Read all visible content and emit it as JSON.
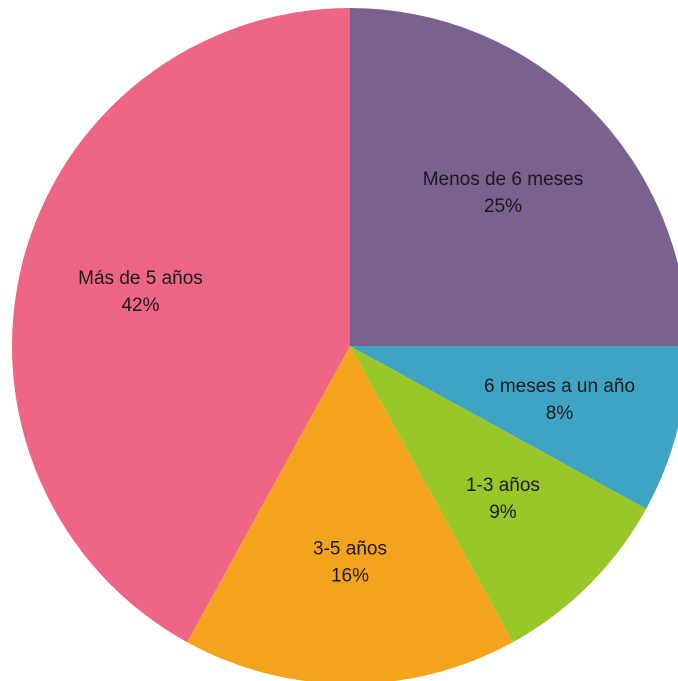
{
  "chart_data": {
    "type": "pie",
    "categories": [
      "Menos de 6 meses",
      "6 meses a un año",
      "1-3 años",
      "3-5 años",
      "Más de 5 años"
    ],
    "values": [
      25,
      8,
      9,
      16,
      42
    ],
    "value_labels": [
      "25%",
      "8%",
      "9%",
      "16%",
      "42%"
    ],
    "colors": [
      "#7b6190",
      "#3fa3c4",
      "#98c72a",
      "#f4a41c",
      "#ef6585"
    ]
  }
}
